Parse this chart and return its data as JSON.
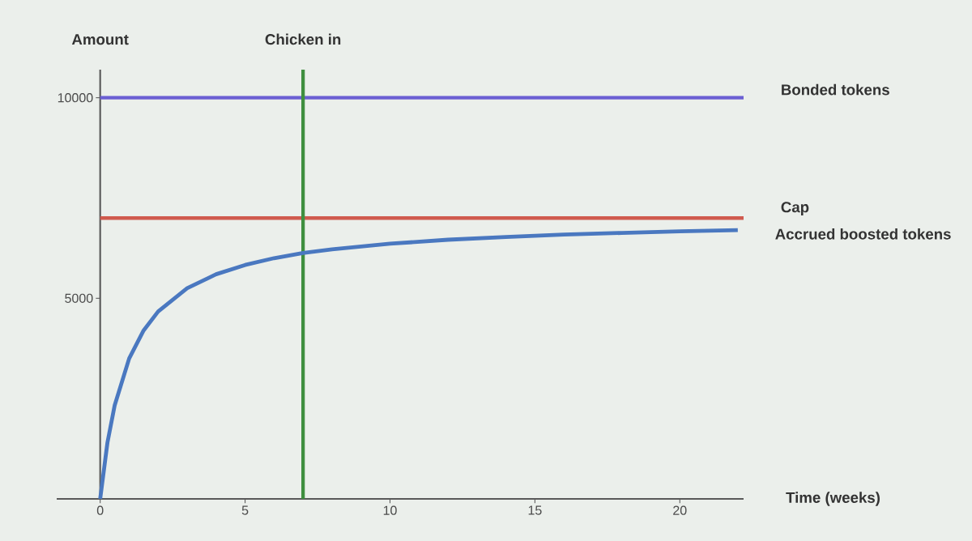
{
  "chart_data": {
    "type": "line",
    "xlabel": "Time (weeks)",
    "ylabel": "Amount",
    "xlim": [
      -1.5,
      22.2
    ],
    "ylim": [
      0,
      10700
    ],
    "xticks": [
      0,
      5,
      10,
      15,
      20
    ],
    "yticks": [
      5000,
      10000
    ],
    "series": [
      {
        "name": "Accrued boosted tokens",
        "color": "#4a78c0",
        "x": [
          0,
          0.25,
          0.5,
          1,
          1.5,
          2,
          3,
          4,
          5,
          6,
          7,
          8,
          10,
          12,
          14,
          16,
          18,
          20,
          22
        ],
        "values": [
          0,
          1400,
          2330,
          3500,
          4200,
          4670,
          5250,
          5600,
          5830,
          6000,
          6130,
          6220,
          6360,
          6460,
          6530,
          6590,
          6630,
          6670,
          6700
        ]
      }
    ],
    "ref_lines": [
      {
        "axis": "y",
        "value": 10000,
        "label": "Bonded tokens",
        "color": "#6b5fd3"
      },
      {
        "axis": "y",
        "value": 7000,
        "label": "Cap",
        "color": "#d05a4e"
      },
      {
        "axis": "x",
        "value": 7,
        "label": "Chicken in",
        "color": "#3f8f3f"
      }
    ]
  }
}
